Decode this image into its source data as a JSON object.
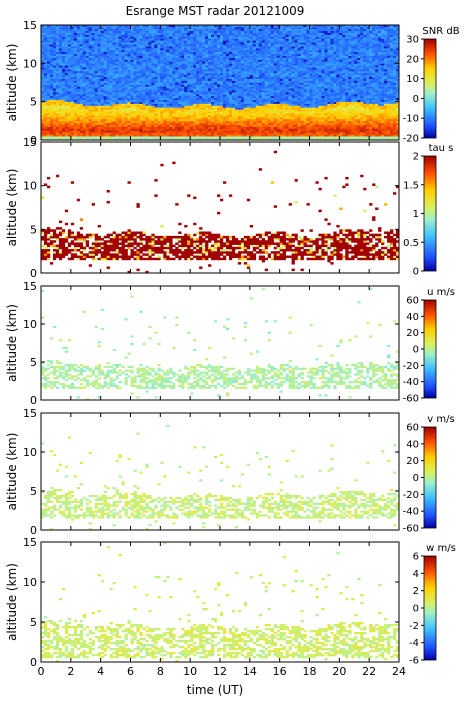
{
  "chart_data": {
    "type": "heatmap",
    "title": "Esrange MST radar 20121009",
    "xlabel": "time (UT)",
    "x_ticks": [
      "0",
      "2",
      "4",
      "6",
      "8",
      "10",
      "12",
      "14",
      "16",
      "18",
      "20",
      "22",
      "24"
    ],
    "xlim": [
      0,
      24
    ],
    "panels": [
      {
        "ylabel": "altitude (km)",
        "ylim": [
          0,
          15
        ],
        "y_ticks": [
          "0",
          "5",
          "10",
          "15"
        ],
        "colorbar_label": "SNR dB",
        "colorbar_range": [
          -20,
          30
        ],
        "colorbar_ticks": [
          "30",
          "20",
          "10",
          "0",
          "-10",
          "-20"
        ],
        "summary": {
          "noise_level": -10,
          "layer_near_km": [
            0.5,
            5.0
          ],
          "peak_near_km": 1.3,
          "peak_value": 25
        }
      },
      {
        "ylabel": "altitude (km)",
        "ylim": [
          0,
          15
        ],
        "y_ticks": [
          "0",
          "5",
          "10",
          "15"
        ],
        "colorbar_label": "tau s",
        "colorbar_range": [
          0,
          2
        ],
        "colorbar_ticks": [
          "2",
          "1.5",
          "1",
          "0.5",
          "0"
        ],
        "summary": {
          "dominant_value": 2.0,
          "layer_near_km": [
            1.5,
            5.0
          ]
        }
      },
      {
        "ylabel": "altitude (km)",
        "ylim": [
          0,
          15
        ],
        "y_ticks": [
          "0",
          "5",
          "10",
          "15"
        ],
        "colorbar_label": "u m/s",
        "colorbar_range": [
          -60,
          60
        ],
        "colorbar_ticks": [
          "60",
          "40",
          "20",
          "0",
          "-20",
          "-40",
          "-60"
        ],
        "summary": {
          "dominant_value": -2,
          "layer_near_km": [
            1.5,
            5.0
          ]
        }
      },
      {
        "ylabel": "altitude (km)",
        "ylim": [
          0,
          15
        ],
        "y_ticks": [
          "0",
          "5",
          "10",
          "15"
        ],
        "colorbar_label": "v m/s",
        "colorbar_range": [
          -60,
          60
        ],
        "colorbar_ticks": [
          "60",
          "40",
          "20",
          "0",
          "-20",
          "-40",
          "-60"
        ],
        "summary": {
          "dominant_value": 3,
          "layer_near_km": [
            1.5,
            5.0
          ]
        }
      },
      {
        "ylabel": "altitude (km)",
        "ylim": [
          0,
          15
        ],
        "y_ticks": [
          "0",
          "5",
          "10",
          "15"
        ],
        "colorbar_label": "w m/s",
        "colorbar_range": [
          -6,
          6
        ],
        "colorbar_ticks": [
          "6",
          "4",
          "2",
          "0",
          "-2",
          "-4",
          "-6"
        ],
        "summary": {
          "dominant_value": 0.5,
          "layer_near_km": [
            0.5,
            5.0
          ]
        }
      }
    ]
  }
}
